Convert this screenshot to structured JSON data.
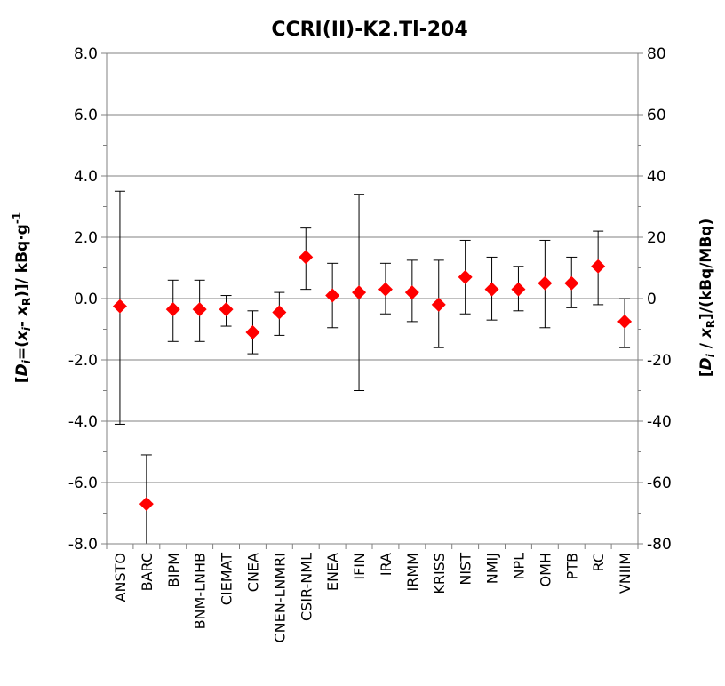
{
  "chart_data": {
    "type": "scatter",
    "title": "CCRI(II)-K2.Tl-204",
    "ylabel_left": "[D_i=(x_i- x_R)]/ kBq·g⁻¹",
    "ylabel_right": "[D_i / x_R]/(kBq/MBq)",
    "ylim_left": [
      -8,
      8
    ],
    "ylim_right": [
      -80,
      80
    ],
    "yticks_left": [
      "8.0",
      "6.0",
      "4.0",
      "2.0",
      "0.0",
      "-2.0",
      "-4.0",
      "-6.0",
      "-8.0"
    ],
    "yticks_right": [
      "80",
      "60",
      "40",
      "20",
      "0",
      "-20",
      "-40",
      "-60",
      "-80"
    ],
    "grid": true,
    "marker_color": "#ff0000",
    "categories": [
      "ANSTO",
      "BARC",
      "BIPM",
      "BNM-LNHB",
      "CIEMAT",
      "CNEA",
      "CNEN-LNMRI",
      "CSIR-NML",
      "ENEA",
      "IFIN",
      "IRA",
      "IRMM",
      "KRISS",
      "NIST",
      "NMIJ",
      "NPL",
      "OMH",
      "PTB",
      "RC",
      "VNIIM"
    ],
    "values": [
      -0.25,
      -6.7,
      -0.35,
      -0.35,
      -0.35,
      -1.1,
      -0.45,
      1.35,
      0.1,
      0.2,
      0.3,
      0.2,
      -0.2,
      0.7,
      0.3,
      0.3,
      0.5,
      0.5,
      1.05,
      -0.75
    ],
    "err_upper": [
      3.5,
      -5.1,
      0.6,
      0.6,
      0.1,
      -0.4,
      0.2,
      2.3,
      1.15,
      3.4,
      1.15,
      1.25,
      1.25,
      1.9,
      1.35,
      1.05,
      1.9,
      1.35,
      2.2,
      0.0
    ],
    "err_lower": [
      -4.1,
      -8.0,
      -1.4,
      -1.4,
      -0.9,
      -1.8,
      -1.2,
      0.3,
      -0.95,
      -3.0,
      -0.5,
      -0.75,
      -1.6,
      -0.5,
      -0.7,
      -0.4,
      -0.95,
      -0.3,
      -0.2,
      -1.6
    ]
  }
}
